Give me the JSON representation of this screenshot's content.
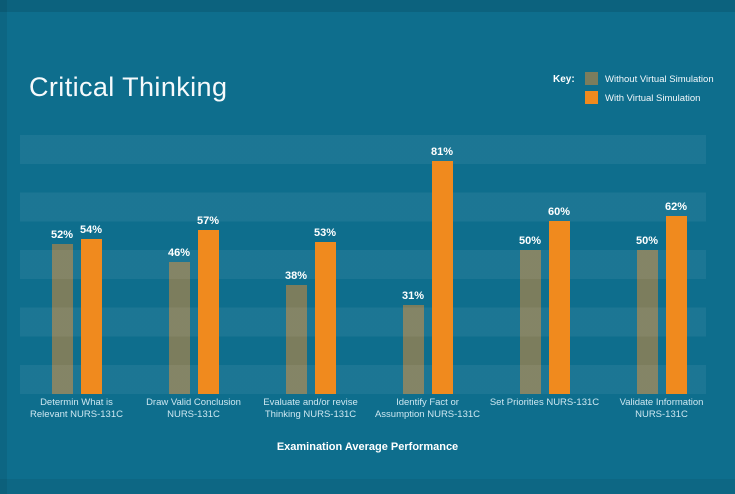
{
  "title": "Critical Thinking",
  "legend": {
    "key_label": "Key:",
    "items": [
      {
        "label": "Without Virtual Simulation",
        "color": "#7C7D5D"
      },
      {
        "label": "With Virtual Simulation",
        "color": "#F08A1E"
      }
    ]
  },
  "x_axis_title": "Examination Average Performance",
  "colors": {
    "background": "#0E6E8D",
    "band_highlight": "rgba(255,255,255,0.06)",
    "without_bar": "#7C7D5D",
    "with_bar": "#F08A1E",
    "category_label": "#CDE7F1",
    "text": "#FFFFFF"
  },
  "chart_data": {
    "type": "bar",
    "title": "Critical Thinking",
    "xlabel": "Examination Average Performance",
    "ylabel": "",
    "unit": "%",
    "ylim": [
      0,
      90
    ],
    "band_interval": 10,
    "grid": "alternating horizontal bands",
    "legend_position": "top-right",
    "categories": [
      "Determin What is Relevant NURS-131C",
      "Draw Valid Conclusion NURS-131C",
      "Evaluate and/or revise Thinking NURS-131C",
      "Identify Fact or Assumption NURS-131C",
      "Set Priorities NURS-131C",
      "Validate Information NURS-131C"
    ],
    "category_display": [
      "Determin What is\nRelevant NURS-131C",
      "Draw Valid Conclusion\nNURS-131C",
      "Evaluate and/or revise\nThinking NURS-131C",
      "Identify Fact or\nAssumption NURS-131C",
      "Set Priorities NURS-131C",
      "Validate Information\nNURS-131C"
    ],
    "series": [
      {
        "name": "Without Virtual Simulation",
        "color": "#7C7D5D",
        "opacity": 1,
        "values": [
          52,
          46,
          38,
          31,
          50,
          50
        ]
      },
      {
        "name": "With Virtual Simulation",
        "color": "#F08A1E",
        "opacity": 1,
        "values": [
          54,
          57,
          53,
          81,
          60,
          62
        ]
      }
    ]
  }
}
